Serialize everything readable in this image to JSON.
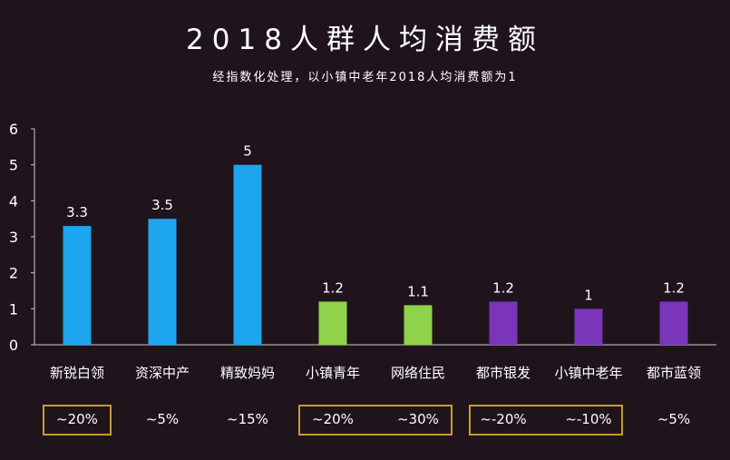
{
  "chart_data": {
    "type": "bar",
    "title": "2018人群人均消费额",
    "subtitle": "经指数化处理，以小镇中老年2018人均消费额为1",
    "categories": [
      "新锐白领",
      "资深中产",
      "精致妈妈",
      "小镇青年",
      "网络住民",
      "都市银发",
      "小镇中老年",
      "都市蓝领"
    ],
    "values": [
      3.3,
      3.5,
      5,
      1.2,
      1.1,
      1.2,
      1,
      1.2
    ],
    "value_labels": [
      "3.3",
      "3.5",
      "5",
      "1.2",
      "1.1",
      "1.2",
      "1",
      "1.2"
    ],
    "bar_colors": [
      "#1ea5f0",
      "#1ea5f0",
      "#1ea5f0",
      "#8fd34a",
      "#8fd34a",
      "#7a35b8",
      "#7a35b8",
      "#7a35b8"
    ],
    "ylim": [
      0,
      6
    ],
    "yticks": [
      "0",
      "1",
      "2",
      "3",
      "4",
      "5",
      "6"
    ],
    "xlabel": "",
    "ylabel": "",
    "grid": false,
    "growth_labels": [
      "~20%",
      "~5%",
      "~15%",
      "~20%",
      "~30%",
      "~-20%",
      "~-10%",
      "~5%"
    ],
    "growth_groups_boxed": [
      [
        0
      ],
      [
        3,
        4
      ],
      [
        5,
        6
      ]
    ]
  },
  "colors": {
    "background": "#1f141c",
    "axis": "#cccccc",
    "box_border": "#c99a2e"
  }
}
